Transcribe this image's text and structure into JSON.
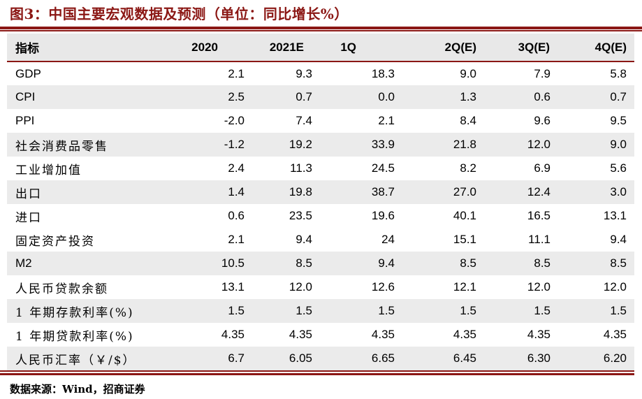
{
  "title": "图3：中国主要宏观数据及预测（单位：同比增长%）",
  "source_note": "数据来源：Wind，招商证券",
  "colors": {
    "accent": "#8B1714",
    "header_bg": "#E8E8E8",
    "row_alt_bg": "#EBEBEB",
    "title_color": "#8B1714",
    "text_color": "#000000"
  },
  "table": {
    "columns": [
      "指标",
      "2020",
      "2021E",
      "1Q",
      "2Q(E)",
      "3Q(E)",
      "4Q(E)"
    ],
    "rows": [
      {
        "label": "GDP",
        "values": [
          "2.1",
          "9.3",
          "18.3",
          "9.0",
          "7.9",
          "5.8"
        ],
        "shaded": false
      },
      {
        "label": "CPI",
        "values": [
          "2.5",
          "0.7",
          "0.0",
          "1.3",
          "0.6",
          "0.7"
        ],
        "shaded": true
      },
      {
        "label": "PPI",
        "values": [
          "-2.0",
          "7.4",
          "2.1",
          "8.4",
          "9.6",
          "9.5"
        ],
        "shaded": false
      },
      {
        "label": "社会消费品零售",
        "values": [
          "-1.2",
          "19.2",
          "33.9",
          "21.8",
          "12.0",
          "9.0"
        ],
        "shaded": true
      },
      {
        "label": "工业增加值",
        "values": [
          "2.4",
          "11.3",
          "24.5",
          "8.2",
          "6.9",
          "5.6"
        ],
        "shaded": false
      },
      {
        "label": "出口",
        "values": [
          "1.4",
          "19.8",
          "38.7",
          "27.0",
          "12.4",
          "3.0"
        ],
        "shaded": true
      },
      {
        "label": "进口",
        "values": [
          "0.6",
          "23.5",
          "19.6",
          "40.1",
          "16.5",
          "13.1"
        ],
        "shaded": false
      },
      {
        "label": "固定资产投资",
        "values": [
          "2.1",
          "9.4",
          "24",
          "15.1",
          "11.1",
          "9.4"
        ],
        "shaded": false
      },
      {
        "label": "M2",
        "values": [
          "10.5",
          "8.5",
          "9.4",
          "8.5",
          "8.5",
          "8.5"
        ],
        "shaded": true
      },
      {
        "label": "人民币贷款余额",
        "values": [
          "13.1",
          "12.0",
          "12.6",
          "12.1",
          "12.0",
          "12.0"
        ],
        "shaded": false
      },
      {
        "label": "1 年期存款利率(%)",
        "values": [
          "1.5",
          "1.5",
          "1.5",
          "1.5",
          "1.5",
          "1.5"
        ],
        "shaded": true
      },
      {
        "label": "1 年期贷款利率(%)",
        "values": [
          "4.35",
          "4.35",
          "4.35",
          "4.35",
          "4.35",
          "4.35"
        ],
        "shaded": false
      },
      {
        "label": "人民币汇率（￥/$）",
        "values": [
          "6.7",
          "6.05",
          "6.65",
          "6.45",
          "6.30",
          "6.20"
        ],
        "shaded": true
      }
    ]
  }
}
